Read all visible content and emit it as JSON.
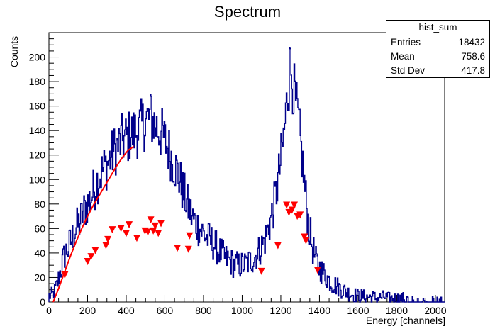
{
  "chart_data": {
    "type": "histogram",
    "title": "Spectrum",
    "xlabel": "Energy [channels]",
    "ylabel": "Counts",
    "xlim": [
      0,
      2048
    ],
    "ylim": [
      0,
      220
    ],
    "xticks": [
      0,
      200,
      400,
      600,
      800,
      1000,
      1200,
      1400,
      1600,
      1800,
      2000
    ],
    "yticks": [
      0,
      20,
      40,
      60,
      80,
      100,
      120,
      140,
      160,
      180,
      200
    ],
    "colors": {
      "histogram": "#00008b",
      "markers": "#ff0000",
      "fit": "#ff0000"
    },
    "histogram_envelope": {
      "x": [
        0,
        20,
        40,
        60,
        80,
        100,
        120,
        140,
        160,
        180,
        200,
        220,
        240,
        260,
        280,
        300,
        320,
        340,
        360,
        380,
        400,
        420,
        440,
        460,
        480,
        500,
        520,
        540,
        560,
        580,
        600,
        620,
        640,
        660,
        680,
        700,
        720,
        740,
        760,
        780,
        800,
        820,
        840,
        860,
        880,
        900,
        920,
        940,
        960,
        980,
        1000,
        1020,
        1040,
        1060,
        1080,
        1100,
        1120,
        1140,
        1160,
        1180,
        1200,
        1210,
        1220,
        1230,
        1240,
        1250,
        1260,
        1270,
        1280,
        1290,
        1300,
        1310,
        1320,
        1330,
        1340,
        1360,
        1380,
        1400,
        1420,
        1440,
        1460,
        1480,
        1500,
        1520,
        1540,
        1560,
        1580,
        1600,
        1620,
        1640,
        1660,
        1680,
        1700,
        1720,
        1740,
        1760,
        1780,
        1800,
        1820,
        1840,
        1860,
        1880,
        1900,
        1920,
        1940,
        1960,
        1980,
        2000,
        2020,
        2040
      ],
      "y": [
        5,
        6,
        12,
        25,
        38,
        44,
        52,
        60,
        65,
        74,
        80,
        86,
        95,
        102,
        108,
        112,
        118,
        124,
        128,
        132,
        133,
        136,
        138,
        140,
        143,
        148,
        150,
        148,
        142,
        138,
        132,
        124,
        116,
        108,
        98,
        88,
        78,
        70,
        64,
        60,
        56,
        52,
        50,
        46,
        42,
        38,
        35,
        33,
        31,
        30,
        30,
        31,
        33,
        36,
        40,
        45,
        52,
        62,
        75,
        92,
        115,
        128,
        142,
        160,
        178,
        188,
        182,
        170,
        158,
        148,
        132,
        118,
        100,
        84,
        68,
        48,
        34,
        28,
        24,
        20,
        16,
        14,
        12,
        10,
        8,
        7,
        6,
        5,
        5,
        4,
        4,
        4,
        3,
        4,
        4,
        3,
        3,
        3,
        3,
        3,
        2,
        2,
        2,
        2,
        2,
        2,
        2,
        1,
        1,
        1
      ]
    },
    "peaks": [
      {
        "x": 528,
        "y": 168
      },
      {
        "x": 1242,
        "y": 208
      }
    ],
    "markers": {
      "shape": "inverted-triangle",
      "x": [
        82,
        200,
        218,
        240,
        295,
        305,
        328,
        373,
        400,
        415,
        455,
        497,
        512,
        527,
        540,
        550,
        566,
        580,
        665,
        722,
        728,
        1100,
        1185,
        1230,
        1242,
        1258,
        1270,
        1285,
        1300,
        1322,
        1330,
        1390
      ],
      "y": [
        22,
        33,
        37,
        42,
        46,
        51,
        59,
        60,
        56,
        63,
        52,
        58,
        57,
        67,
        58,
        62,
        56,
        64,
        44,
        43,
        54,
        25,
        46,
        79,
        73,
        75,
        79,
        70,
        71,
        53,
        50,
        26
      ]
    },
    "fit": {
      "x": [
        22,
        50,
        80,
        110,
        140,
        170,
        200,
        230,
        260,
        290,
        320,
        350,
        380,
        410,
        440
      ],
      "y": [
        0,
        11,
        24,
        37,
        49,
        60,
        70,
        79,
        87,
        95,
        103,
        111,
        118,
        124,
        127
      ]
    }
  },
  "stats_box": {
    "name": "hist_sum",
    "rows": [
      {
        "label": "Entries",
        "value": "18432"
      },
      {
        "label": "Mean",
        "value": "758.6"
      },
      {
        "label": "Std Dev",
        "value": "417.8"
      }
    ]
  }
}
